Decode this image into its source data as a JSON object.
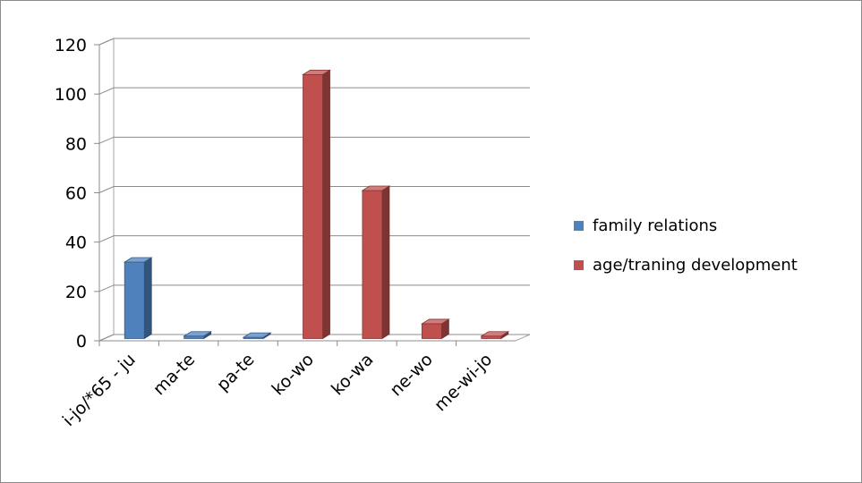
{
  "chart_data": {
    "type": "bar",
    "style": "3d-clustered-column",
    "categories": [
      "i-jo/*65 - ju",
      "ma-te",
      "pa-te",
      "ko-wo",
      "ko-wa",
      "ne-wo",
      "me-wi-jo"
    ],
    "series": [
      {
        "name": "family relations",
        "color": "#4f81bd",
        "values": [
          31,
          1,
          0.5,
          null,
          null,
          null,
          null
        ]
      },
      {
        "name": "age/traning development",
        "color": "#c0504d",
        "values": [
          null,
          null,
          null,
          107,
          60,
          6,
          1
        ]
      }
    ],
    "yticks": [
      0,
      20,
      40,
      60,
      80,
      100,
      120
    ],
    "ylim": [
      0,
      120
    ],
    "grid": true,
    "legend_position": "right",
    "title": "",
    "xlabel": "",
    "ylabel": ""
  }
}
